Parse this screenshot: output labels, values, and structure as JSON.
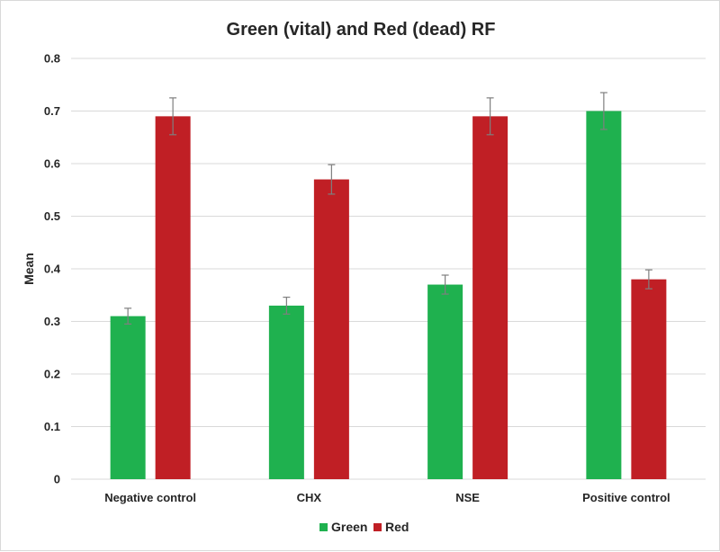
{
  "chart_data": {
    "type": "bar",
    "title": "Green (vital) and Red (dead) RF",
    "xlabel": "",
    "ylabel": "Mean",
    "ylim": [
      0,
      0.8
    ],
    "yticks": [
      "0",
      "0.1",
      "0.2",
      "0.3",
      "0.4",
      "0.5",
      "0.6",
      "0.7",
      "0.8"
    ],
    "categories": [
      "Negative control",
      "CHX",
      "NSE",
      "Positive control"
    ],
    "series": [
      {
        "name": "Green",
        "color": "#1fb14f",
        "values": [
          0.31,
          0.33,
          0.37,
          0.7
        ],
        "errors": [
          0.015,
          0.016,
          0.018,
          0.035
        ]
      },
      {
        "name": "Red",
        "color": "#c01f25",
        "values": [
          0.69,
          0.57,
          0.69,
          0.38
        ],
        "errors": [
          0.035,
          0.028,
          0.035,
          0.018
        ]
      }
    ],
    "grid": true,
    "legend_position": "bottom"
  }
}
